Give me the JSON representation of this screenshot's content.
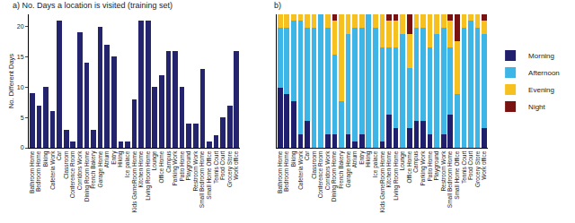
{
  "chart_data": [
    {
      "type": "bar",
      "title": "a) No. Days a location is visited (training set)",
      "y_label": "No. Different Days",
      "categories": [
        "Bathroom Home",
        "Bedroom Home",
        "Biking",
        "Cafeteria Work",
        "Car",
        "Classroom",
        "Conference Room",
        "Corridors Work",
        "Dining Room Home",
        "French Bakery",
        "Garage Home",
        "Atrium",
        "Entry",
        "Hiking",
        "Ice palace",
        "Kids GameRoom Home",
        "Kitchen Home",
        "Living Room Home",
        "Lounge",
        "Office Home",
        "Campus",
        "Parking Work",
        "Patio Home",
        "Playground",
        "Restroom Work",
        "Small Bedroom Home",
        "Small Home Office",
        "Tennis Court",
        "Food Court",
        "Grocery Store",
        "Work office"
      ],
      "values": [
        9,
        7,
        10,
        6,
        21,
        3,
        1,
        19,
        14,
        3,
        20,
        17,
        15,
        1,
        1,
        8,
        21,
        21,
        10,
        12,
        16,
        16,
        10,
        4,
        4,
        13,
        1,
        2,
        5,
        7,
        16
      ],
      "color": "#24246e",
      "ylim": [
        0,
        22
      ],
      "yticks": [
        0,
        5,
        10,
        15,
        20
      ],
      "grid": false
    },
    {
      "type": "bar",
      "title": "b)",
      "stacked": true,
      "legend": "right",
      "tick_labels": "x",
      "ylim": [
        0,
        1
      ],
      "categories": [
        "Bathroom Home",
        "Bedroom Home",
        "Biking",
        "Cafeteria Work",
        "Car",
        "Classroom",
        "Conference Room",
        "Corridors Work",
        "Dining Room Home",
        "French Bakery",
        "Garage Home",
        "Atrium",
        "Entry",
        "Hiking",
        "Ice palace",
        "Kids GameRoom Home",
        "Kitchen Home",
        "Living Room Home",
        "Lounge",
        "Office Home",
        "Campus",
        "Parking Work",
        "Patio Home",
        "Playground",
        "Restroom Work",
        "Small Bedroom Home",
        "Small Home Office",
        "Tennis Court",
        "Food Court",
        "Grocery Store",
        "Work office"
      ],
      "series": [
        {
          "name": "Morning",
          "color": "#1f1f6e",
          "values": [
            0.45,
            0.4,
            0.35,
            0.1,
            0.2,
            0,
            0,
            0.1,
            0.1,
            0,
            0.1,
            0.05,
            0.1,
            0,
            0,
            0.05,
            0.25,
            0.15,
            0,
            0.15,
            0.2,
            0.2,
            0.1,
            0,
            0.1,
            0.25,
            0,
            0,
            0,
            0,
            0.15
          ]
        },
        {
          "name": "Afternoon",
          "color": "#3db5e6",
          "values": [
            0.45,
            0.5,
            0.6,
            0.85,
            0.7,
            0.9,
            1,
            0.8,
            0.6,
            0.35,
            0.75,
            0.85,
            0.8,
            1,
            0.9,
            0.7,
            0.5,
            0.6,
            0.85,
            0.45,
            0.7,
            0.7,
            0.65,
            0.85,
            0.8,
            0.5,
            0.4,
            0.9,
            0.95,
            0.9,
            0.7
          ]
        },
        {
          "name": "Evening",
          "color": "#f6c11f",
          "values": [
            0.1,
            0.1,
            0.05,
            0.05,
            0.1,
            0.1,
            0,
            0.1,
            0.25,
            0.65,
            0.15,
            0.1,
            0.1,
            0,
            0.1,
            0.25,
            0.2,
            0.2,
            0.15,
            0.25,
            0.1,
            0.1,
            0.25,
            0.15,
            0.1,
            0.2,
            0.4,
            0.1,
            0.05,
            0.1,
            0.1
          ]
        },
        {
          "name": "Night",
          "color": "#7a1212",
          "values": [
            0,
            0,
            0,
            0,
            0,
            0,
            0,
            0,
            0.05,
            0,
            0,
            0,
            0,
            0,
            0,
            0,
            0.05,
            0.05,
            0,
            0.15,
            0,
            0,
            0,
            0,
            0,
            0.05,
            0.2,
            0,
            0,
            0,
            0.05
          ]
        }
      ]
    }
  ]
}
